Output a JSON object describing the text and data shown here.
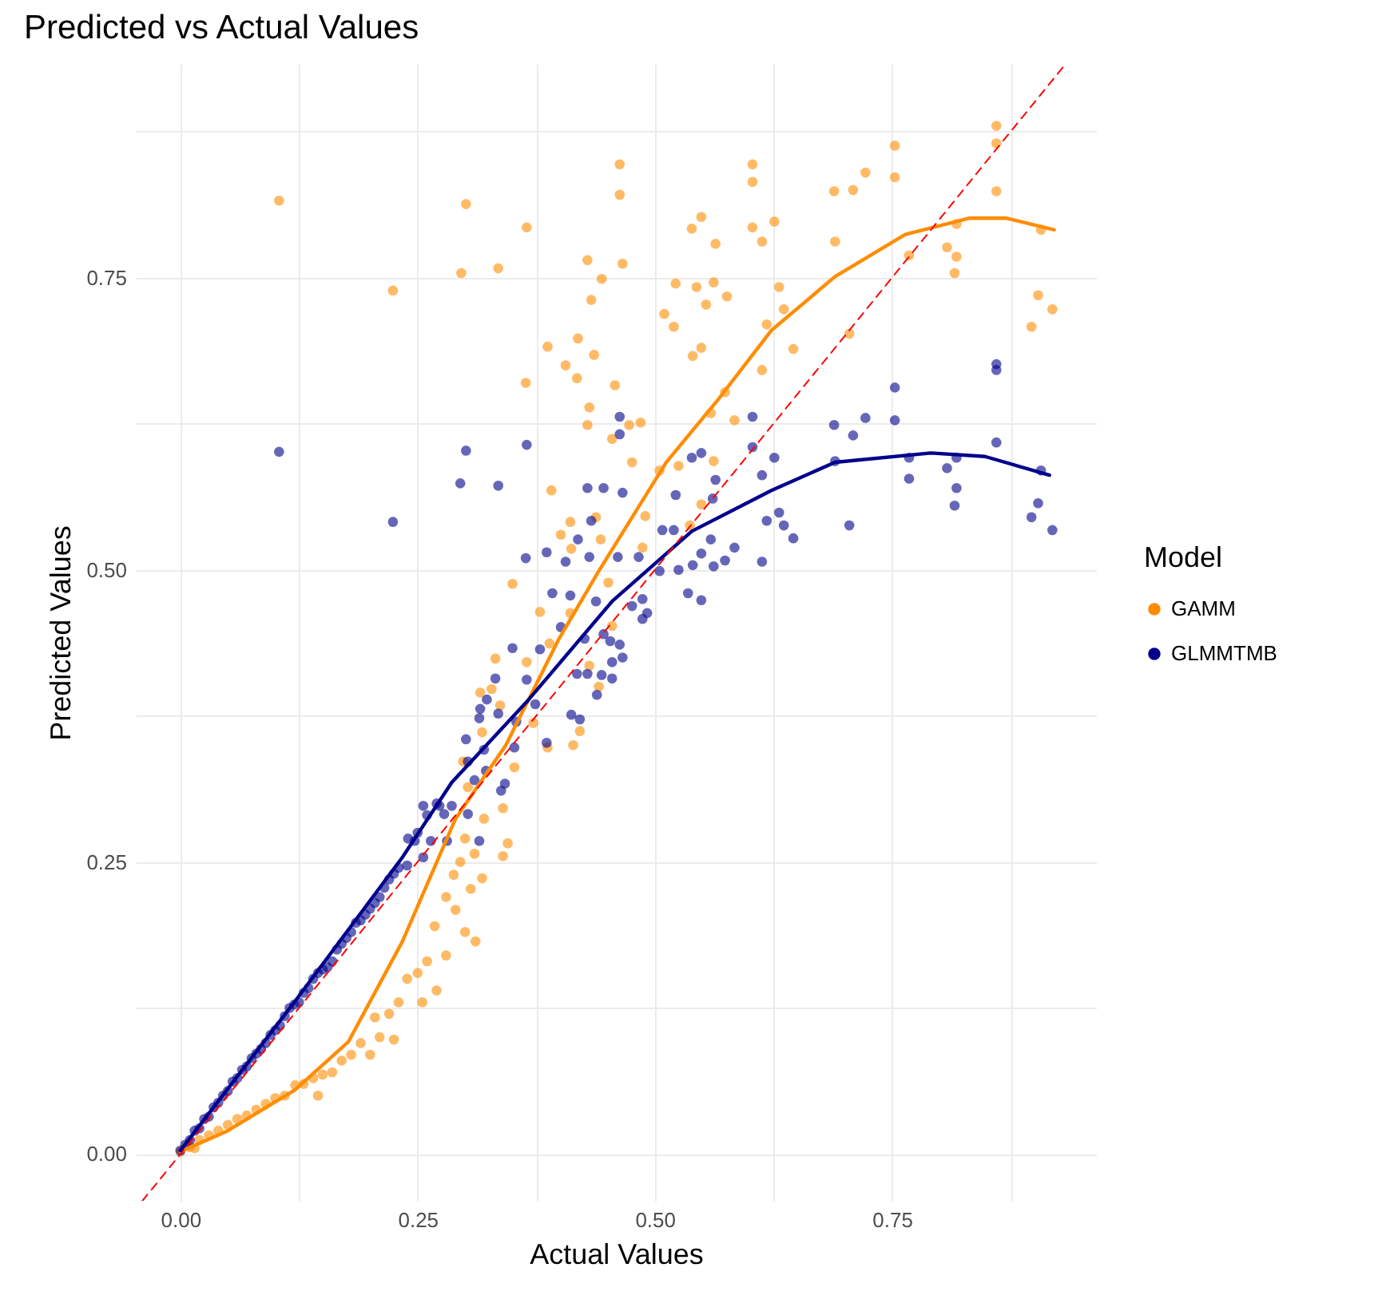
{
  "chart_data": {
    "type": "scatter",
    "title": "Predicted vs Actual Values",
    "xlabel": "Actual Values",
    "ylabel": "Predicted Values",
    "legend_title": "Model",
    "xlim": [
      -0.047,
      0.965
    ],
    "ylim": [
      -0.04,
      0.933
    ],
    "xticks": [
      {
        "value": 0,
        "label": "0.00"
      },
      {
        "value": 0.125,
        "label": null
      },
      {
        "value": 0.25,
        "label": "0.25"
      },
      {
        "value": 0.375,
        "label": null
      },
      {
        "value": 0.5,
        "label": "0.50"
      },
      {
        "value": 0.625,
        "label": null
      },
      {
        "value": 0.75,
        "label": "0.75"
      },
      {
        "value": 0.875,
        "label": null
      }
    ],
    "yticks": [
      {
        "value": 0,
        "label": "0.00"
      },
      {
        "value": 0.125,
        "label": null
      },
      {
        "value": 0.25,
        "label": "0.25"
      },
      {
        "value": 0.375,
        "label": null
      },
      {
        "value": 0.5,
        "label": "0.50"
      },
      {
        "value": 0.625,
        "label": null
      },
      {
        "value": 0.75,
        "label": "0.75"
      },
      {
        "value": 0.875,
        "label": null
      }
    ],
    "grid": true,
    "legend": "right",
    "series": [
      {
        "name": "GAMM",
        "color": "#ff8c00",
        "marker": "circle",
        "x": [
          0.104,
          0.224,
          0.301,
          0.365,
          0.296,
          0.335,
          0.463,
          0.463,
          0.429,
          0.466,
          0.444,
          0.433,
          0.387,
          0.419,
          0.436,
          0.406,
          0.418,
          0.364,
          0.458,
          0.431,
          0.429,
          0.473,
          0.485,
          0.455,
          0.476,
          0.391,
          0.603,
          0.603,
          0.539,
          0.549,
          0.564,
          0.603,
          0.626,
          0.613,
          0.522,
          0.544,
          0.562,
          0.576,
          0.554,
          0.51,
          0.52,
          0.631,
          0.636,
          0.618,
          0.54,
          0.549,
          0.646,
          0.613,
          0.574,
          0.559,
          0.584,
          0.562,
          0.525,
          0.505,
          0.689,
          0.709,
          0.722,
          0.753,
          0.753,
          0.69,
          0.705,
          0.768,
          0.808,
          0.818,
          0.816,
          0.818,
          0.86,
          0.86,
          0.86,
          0.907,
          0.904,
          0.919,
          0.897,
          0.401,
          0.411,
          0.487,
          0.49,
          0.438,
          0.443,
          0.412,
          0.537,
          0.549,
          0.35,
          0.451,
          0.379,
          0.411,
          0.455,
          0.389,
          0.332,
          0.365,
          0.431,
          0.316,
          0.328,
          0.337,
          0.441,
          0.372,
          0.318,
          0.421,
          0.387,
          0.414,
          0.352,
          0.298,
          0.303,
          0.34,
          0.32,
          0.345,
          0.31,
          0.34,
          0.288,
          0.318,
          0.306,
          0.29,
          0.268,
          0.311,
          0.3,
          0.28,
          0.26,
          0.25,
          0.239,
          0.255,
          0.23,
          0.22,
          0.205,
          0.21,
          0.19,
          0.18,
          0.17,
          0.16,
          0.15,
          0.14,
          0.121,
          0.11,
          0.1,
          0.09,
          0.08,
          0.07,
          0.06,
          0.05,
          0.04,
          0.03,
          0.02,
          0.01,
          0.0,
          0.015,
          0.13,
          0.145,
          0.2,
          0.225,
          0.27,
          0.28,
          0.295,
          0.3
        ],
        "values": [
          0.816,
          0.739,
          0.813,
          0.793,
          0.754,
          0.758,
          0.847,
          0.821,
          0.765,
          0.762,
          0.749,
          0.731,
          0.691,
          0.698,
          0.684,
          0.675,
          0.664,
          0.66,
          0.658,
          0.639,
          0.624,
          0.624,
          0.626,
          0.612,
          0.592,
          0.568,
          0.847,
          0.832,
          0.792,
          0.802,
          0.779,
          0.793,
          0.798,
          0.781,
          0.745,
          0.742,
          0.746,
          0.734,
          0.727,
          0.719,
          0.708,
          0.742,
          0.723,
          0.71,
          0.683,
          0.69,
          0.689,
          0.671,
          0.652,
          0.634,
          0.628,
          0.593,
          0.589,
          0.585,
          0.824,
          0.825,
          0.84,
          0.863,
          0.836,
          0.781,
          0.702,
          0.769,
          0.776,
          0.768,
          0.754,
          0.796,
          0.88,
          0.865,
          0.824,
          0.791,
          0.735,
          0.723,
          0.708,
          0.53,
          0.541,
          0.519,
          0.546,
          0.545,
          0.526,
          0.518,
          0.538,
          0.556,
          0.488,
          0.489,
          0.464,
          0.463,
          0.452,
          0.437,
          0.424,
          0.421,
          0.418,
          0.395,
          0.398,
          0.384,
          0.4,
          0.369,
          0.361,
          0.362,
          0.348,
          0.35,
          0.331,
          0.336,
          0.314,
          0.296,
          0.287,
          0.266,
          0.257,
          0.255,
          0.239,
          0.236,
          0.227,
          0.209,
          0.195,
          0.182,
          0.19,
          0.17,
          0.165,
          0.155,
          0.15,
          0.13,
          0.13,
          0.12,
          0.117,
          0.1,
          0.095,
          0.085,
          0.08,
          0.07,
          0.068,
          0.065,
          0.059,
          0.05,
          0.048,
          0.043,
          0.038,
          0.033,
          0.03,
          0.025,
          0.02,
          0.016,
          0.012,
          0.006,
          0.002,
          0.005,
          0.06,
          0.05,
          0.085,
          0.098,
          0.14,
          0.22,
          0.25,
          0.27
        ]
      },
      {
        "name": "GLMMTMB",
        "color": "#00008b",
        "marker": "circle",
        "x": [
          0.463,
          0.603,
          0.463,
          0.301,
          0.365,
          0.295,
          0.335,
          0.429,
          0.446,
          0.466,
          0.539,
          0.549,
          0.564,
          0.603,
          0.626,
          0.613,
          0.522,
          0.561,
          0.689,
          0.722,
          0.709,
          0.69,
          0.631,
          0.636,
          0.618,
          0.646,
          0.705,
          0.508,
          0.52,
          0.433,
          0.419,
          0.386,
          0.364,
          0.406,
          0.431,
          0.461,
          0.483,
          0.559,
          0.584,
          0.574,
          0.549,
          0.54,
          0.525,
          0.562,
          0.613,
          0.505,
          0.535,
          0.549,
          0.392,
          0.411,
          0.438,
          0.487,
          0.492,
          0.487,
          0.476,
          0.401,
          0.446,
          0.453,
          0.426,
          0.463,
          0.466,
          0.455,
          0.35,
          0.379,
          0.418,
          0.429,
          0.444,
          0.455,
          0.439,
          0.332,
          0.365,
          0.374,
          0.316,
          0.323,
          0.335,
          0.315,
          0.354,
          0.412,
          0.421,
          0.386,
          0.301,
          0.32,
          0.303,
          0.352,
          0.322,
          0.342,
          0.31,
          0.338,
          0.256,
          0.273,
          0.286,
          0.278,
          0.303,
          0.315,
          0.247,
          0.264,
          0.281,
          0.256,
          0.239,
          0.104,
          0.224,
          0.753,
          0.753,
          0.86,
          0.86,
          0.86,
          0.768,
          0.808,
          0.818,
          0.816,
          0.768,
          0.818,
          0.904,
          0.897,
          0.919,
          0.907,
          0.23,
          0.22,
          0.21,
          0.2,
          0.19,
          0.18,
          0.17,
          0.16,
          0.15,
          0.14,
          0.13,
          0.12,
          0.11,
          0.1,
          0.09,
          0.08,
          0.07,
          0.06,
          0.05,
          0.04,
          0.03,
          0.02,
          0.01,
          0.0,
          0.005,
          0.015,
          0.025,
          0.035,
          0.045,
          0.055,
          0.065,
          0.075,
          0.085,
          0.095,
          0.105,
          0.115,
          0.125,
          0.135,
          0.145,
          0.155,
          0.165,
          0.175,
          0.185,
          0.195,
          0.205,
          0.215,
          0.225,
          0.24,
          0.25,
          0.26,
          0.27
        ],
        "values": [
          0.631,
          0.631,
          0.616,
          0.602,
          0.607,
          0.574,
          0.572,
          0.57,
          0.57,
          0.566,
          0.596,
          0.6,
          0.577,
          0.605,
          0.596,
          0.581,
          0.564,
          0.561,
          0.624,
          0.63,
          0.615,
          0.593,
          0.549,
          0.538,
          0.542,
          0.527,
          0.538,
          0.534,
          0.534,
          0.542,
          0.526,
          0.515,
          0.51,
          0.507,
          0.511,
          0.511,
          0.511,
          0.526,
          0.519,
          0.508,
          0.514,
          0.504,
          0.5,
          0.503,
          0.507,
          0.499,
          0.48,
          0.474,
          0.48,
          0.478,
          0.473,
          0.475,
          0.463,
          0.458,
          0.469,
          0.451,
          0.445,
          0.439,
          0.441,
          0.436,
          0.425,
          0.421,
          0.433,
          0.432,
          0.411,
          0.411,
          0.41,
          0.407,
          0.393,
          0.407,
          0.406,
          0.385,
          0.381,
          0.389,
          0.377,
          0.373,
          0.37,
          0.376,
          0.372,
          0.352,
          0.355,
          0.346,
          0.336,
          0.348,
          0.328,
          0.317,
          0.32,
          0.311,
          0.298,
          0.298,
          0.298,
          0.291,
          0.291,
          0.268,
          0.268,
          0.268,
          0.268,
          0.254,
          0.247,
          0.601,
          0.541,
          0.656,
          0.628,
          0.676,
          0.671,
          0.609,
          0.578,
          0.587,
          0.57,
          0.555,
          0.596,
          0.596,
          0.557,
          0.545,
          0.534,
          0.585,
          0.245,
          0.235,
          0.22,
          0.21,
          0.2,
          0.19,
          0.18,
          0.165,
          0.158,
          0.15,
          0.138,
          0.128,
          0.118,
          0.106,
          0.095,
          0.086,
          0.075,
          0.065,
          0.054,
          0.044,
          0.032,
          0.022,
          0.012,
          0.003,
          0.008,
          0.02,
          0.03,
          0.04,
          0.05,
          0.062,
          0.072,
          0.082,
          0.09,
          0.102,
          0.11,
          0.125,
          0.13,
          0.142,
          0.155,
          0.16,
          0.175,
          0.185,
          0.198,
          0.205,
          0.215,
          0.228,
          0.24,
          0.27,
          0.275,
          0.29,
          0.3
        ]
      },
      {
        "type": "line",
        "color": "#ff8c00",
        "x": [
          0,
          0.05,
          0.121,
          0.177,
          0.234,
          0.29,
          0.343,
          0.399,
          0.441,
          0.512,
          0.567,
          0.623,
          0.69,
          0.764,
          0.832,
          0.87,
          0.921
        ],
        "values": [
          0.002,
          0.02,
          0.055,
          0.096,
          0.182,
          0.287,
          0.35,
          0.441,
          0.499,
          0.592,
          0.646,
          0.705,
          0.751,
          0.787,
          0.801,
          0.801,
          0.791
        ]
      },
      {
        "type": "line",
        "color": "#00008b",
        "x": [
          0,
          0.121,
          0.234,
          0.286,
          0.365,
          0.455,
          0.539,
          0.623,
          0.69,
          0.791,
          0.848,
          0.916
        ],
        "values": [
          0.003,
          0.131,
          0.254,
          0.318,
          0.387,
          0.473,
          0.533,
          0.568,
          0.592,
          0.6,
          0.597,
          0.581
        ]
      },
      {
        "type": "line",
        "color": "#ff0000",
        "line_style": "dashed",
        "x": [
          -0.04,
          0.933
        ],
        "values": [
          -0.04,
          0.933
        ]
      }
    ]
  }
}
